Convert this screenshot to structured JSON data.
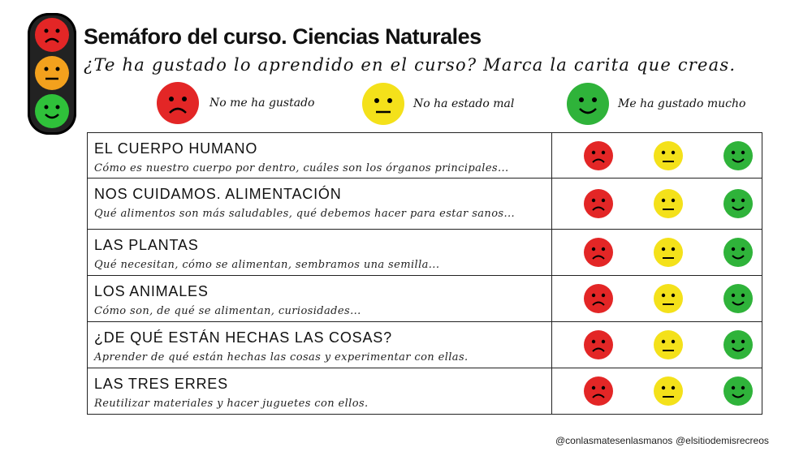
{
  "header": {
    "title": "Semáforo del curso. Ciencias Naturales",
    "subtitle": "¿Te ha gustado lo aprendido en el curso? Marca la carita que creas."
  },
  "legend": [
    {
      "face": "sad-face-icon",
      "color": "#e32626",
      "label": "No me ha gustado"
    },
    {
      "face": "neutral-face-icon",
      "color": "#f4e11a",
      "label": "No ha estado mal"
    },
    {
      "face": "happy-face-icon",
      "color": "#2fb33a",
      "label": "Me ha gustado mucho"
    }
  ],
  "rows": [
    {
      "title": "EL CUERPO HUMANO",
      "desc": "Cómo es nuestro cuerpo por dentro, cuáles son los órganos principales..."
    },
    {
      "title": "NOS CUIDAMOS. ALIMENTACIÓN",
      "desc": "Qué alimentos son más saludables, qué debemos hacer para estar sanos..."
    },
    {
      "title": "LAS PLANTAS",
      "desc": "Qué necesitan, cómo se alimentan, sembramos una semilla..."
    },
    {
      "title": "LOS ANIMALES",
      "desc": "Cómo son, de qué se alimentan, curiosidades..."
    },
    {
      "title": "¿DE QUÉ ESTÁN HECHAS LAS COSAS?",
      "desc": "Aprender de qué están hechas las cosas y experimentar con ellas."
    },
    {
      "title": "LAS TRES ERRES",
      "desc": "Reutilizar materiales y hacer juguetes con ellos."
    }
  ],
  "footer": {
    "credit_left": "@conlasmatesenlasmanos",
    "credit_right": "@elsitiodemisrecreos"
  },
  "colors": {
    "red": "#e32626",
    "yellow": "#f4e11a",
    "green": "#2fb33a"
  }
}
